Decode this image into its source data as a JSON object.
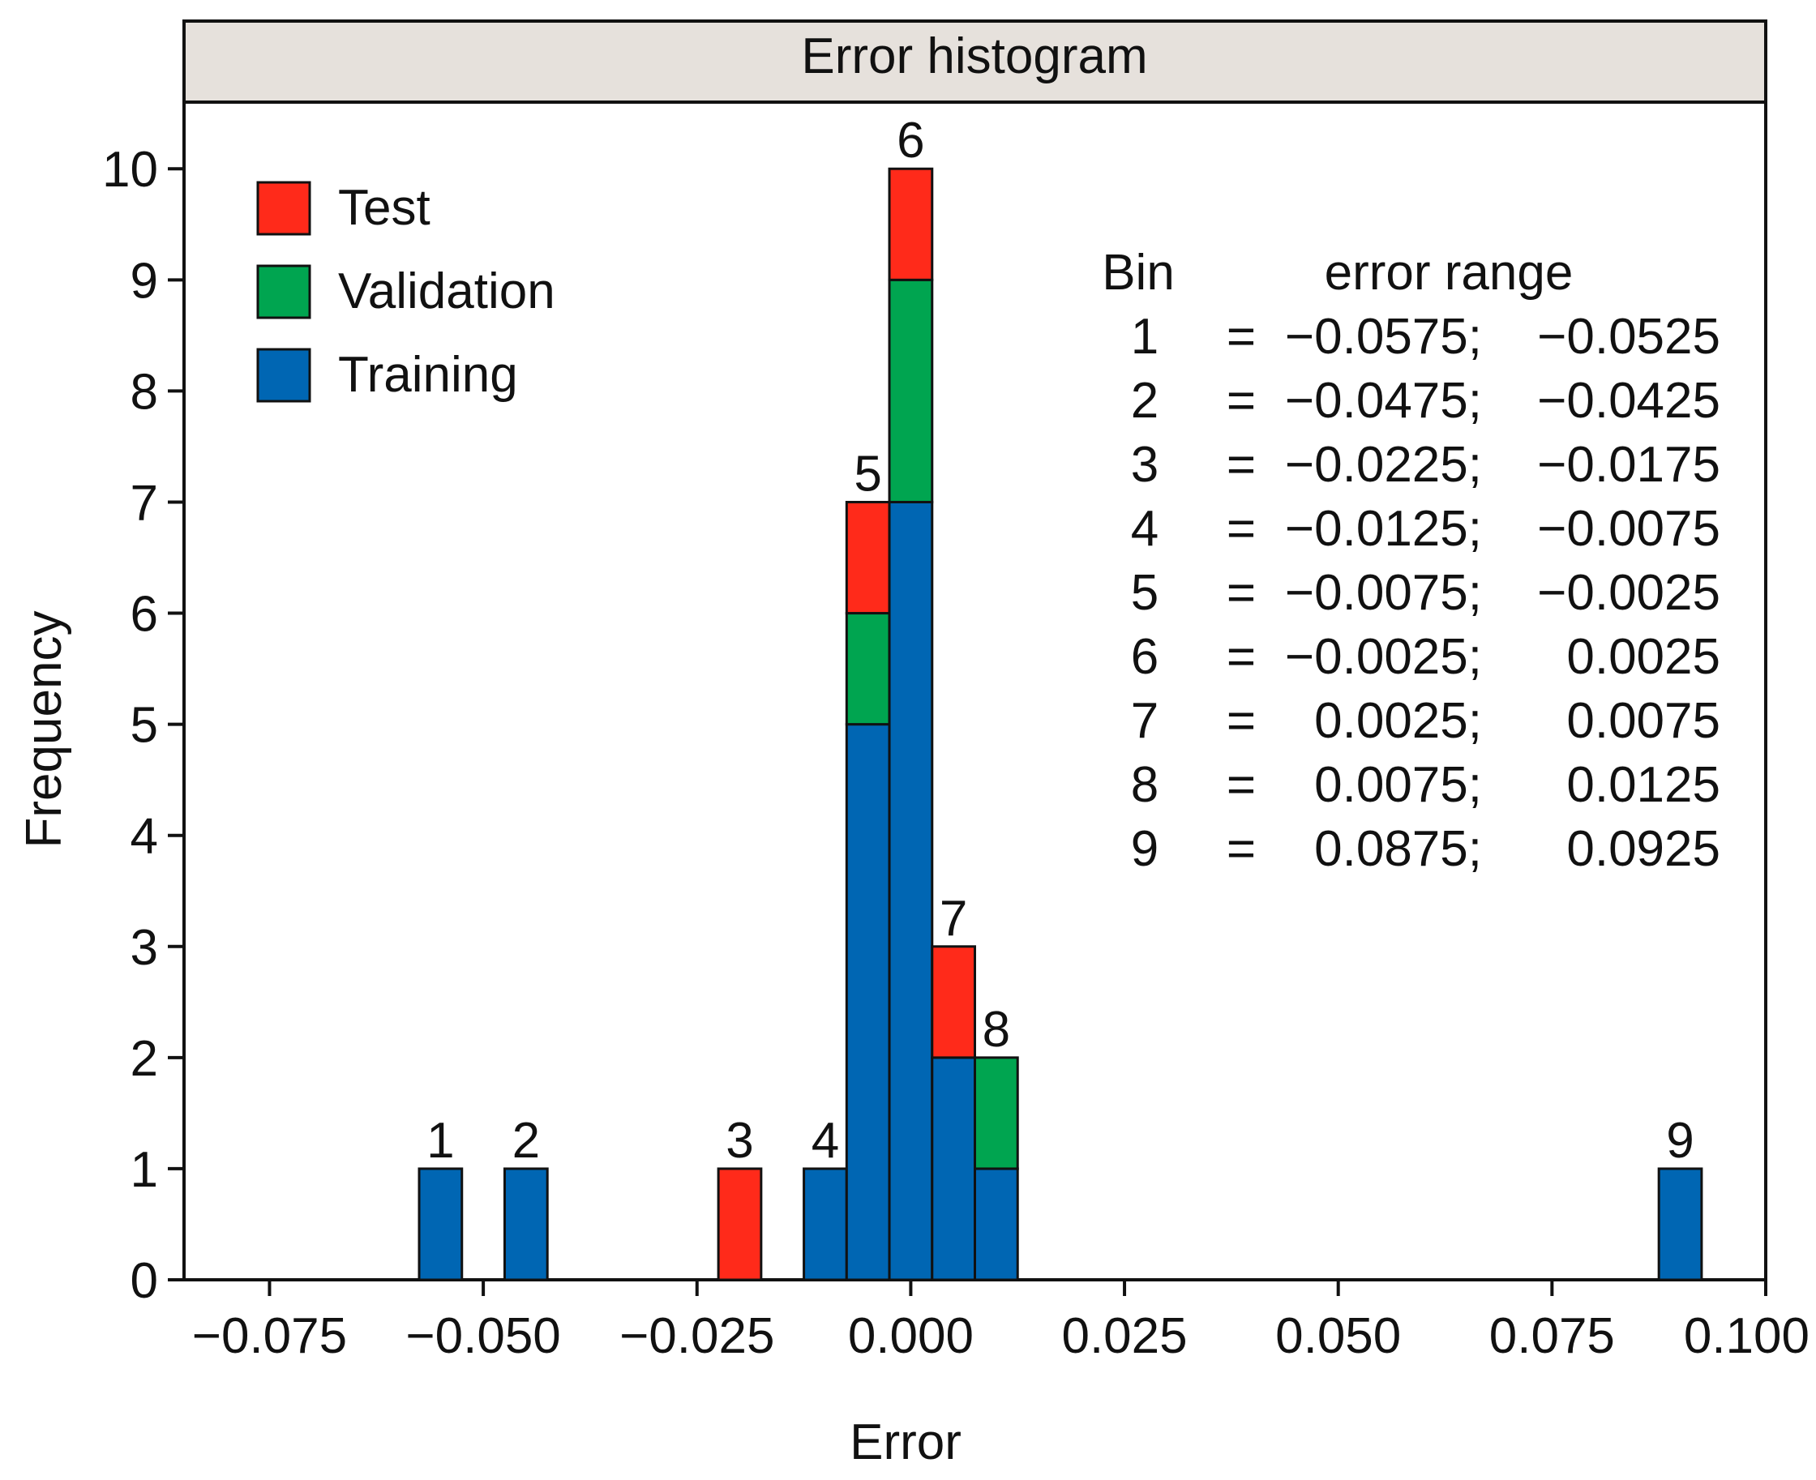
{
  "chart_data": {
    "type": "bar",
    "stacked": true,
    "title": "Error histogram",
    "xlabel": "Error",
    "ylabel": "Frequency",
    "xlim": [
      -0.085,
      0.1
    ],
    "ylim": [
      0,
      10.6
    ],
    "xticks": [
      -0.075,
      -0.05,
      -0.025,
      0.0,
      0.025,
      0.05,
      0.075,
      0.1
    ],
    "xtick_labels": [
      "−0.075",
      "−0.050",
      "−0.025",
      "0.000",
      "0.025",
      "0.050",
      "0.075",
      "0.100"
    ],
    "yticks": [
      0,
      1,
      2,
      3,
      4,
      5,
      6,
      7,
      8,
      9,
      10
    ],
    "ytick_labels": [
      "0",
      "1",
      "2",
      "3",
      "4",
      "5",
      "6",
      "7",
      "8",
      "9",
      "10"
    ],
    "series_order": [
      "Training",
      "Validation",
      "Test"
    ],
    "colors": {
      "Training": "#0066b3",
      "Validation": "#00a550",
      "Test": "#ff2a1a",
      "title_bg": "#e6e1dc"
    },
    "legend": {
      "position": "top-left",
      "items": [
        {
          "name": "Test",
          "color": "#ff2a1a"
        },
        {
          "name": "Validation",
          "color": "#00a550"
        },
        {
          "name": "Training",
          "color": "#0066b3"
        }
      ]
    },
    "bins": [
      {
        "label": "1",
        "range": [
          -0.0575,
          -0.0525
        ],
        "Training": 1,
        "Validation": 0,
        "Test": 0
      },
      {
        "label": "2",
        "range": [
          -0.0475,
          -0.0425
        ],
        "Training": 1,
        "Validation": 0,
        "Test": 0
      },
      {
        "label": "3",
        "range": [
          -0.0225,
          -0.0175
        ],
        "Training": 0,
        "Validation": 0,
        "Test": 1
      },
      {
        "label": "4",
        "range": [
          -0.0125,
          -0.0075
        ],
        "Training": 1,
        "Validation": 0,
        "Test": 0
      },
      {
        "label": "5",
        "range": [
          -0.0075,
          -0.0025
        ],
        "Training": 5,
        "Validation": 1,
        "Test": 1
      },
      {
        "label": "6",
        "range": [
          -0.0025,
          0.0025
        ],
        "Training": 7,
        "Validation": 2,
        "Test": 1
      },
      {
        "label": "7",
        "range": [
          0.0025,
          0.0075
        ],
        "Training": 2,
        "Validation": 0,
        "Test": 1
      },
      {
        "label": "8",
        "range": [
          0.0075,
          0.0125
        ],
        "Training": 1,
        "Validation": 1,
        "Test": 0
      },
      {
        "label": "9",
        "range": [
          0.0875,
          0.0925
        ],
        "Training": 1,
        "Validation": 0,
        "Test": 0
      }
    ],
    "bin_table": {
      "header_bin": "Bin",
      "header_range": "error range",
      "rows": [
        {
          "bin": "1",
          "eq": "=",
          "lo": "−0.0575;",
          "hi": "−0.0525"
        },
        {
          "bin": "2",
          "eq": "=",
          "lo": "−0.0475;",
          "hi": "−0.0425"
        },
        {
          "bin": "3",
          "eq": "=",
          "lo": "−0.0225;",
          "hi": "−0.0175"
        },
        {
          "bin": "4",
          "eq": "=",
          "lo": "−0.0125;",
          "hi": "−0.0075"
        },
        {
          "bin": "5",
          "eq": "=",
          "lo": "−0.0075;",
          "hi": "−0.0025"
        },
        {
          "bin": "6",
          "eq": "=",
          "lo": "−0.0025;",
          "hi": "0.0025"
        },
        {
          "bin": "7",
          "eq": "=",
          "lo": "0.0025;",
          "hi": "0.0075"
        },
        {
          "bin": "8",
          "eq": "=",
          "lo": "0.0075;",
          "hi": "0.0125"
        },
        {
          "bin": "9",
          "eq": "=",
          "lo": "0.0875;",
          "hi": "0.0925"
        }
      ]
    }
  }
}
